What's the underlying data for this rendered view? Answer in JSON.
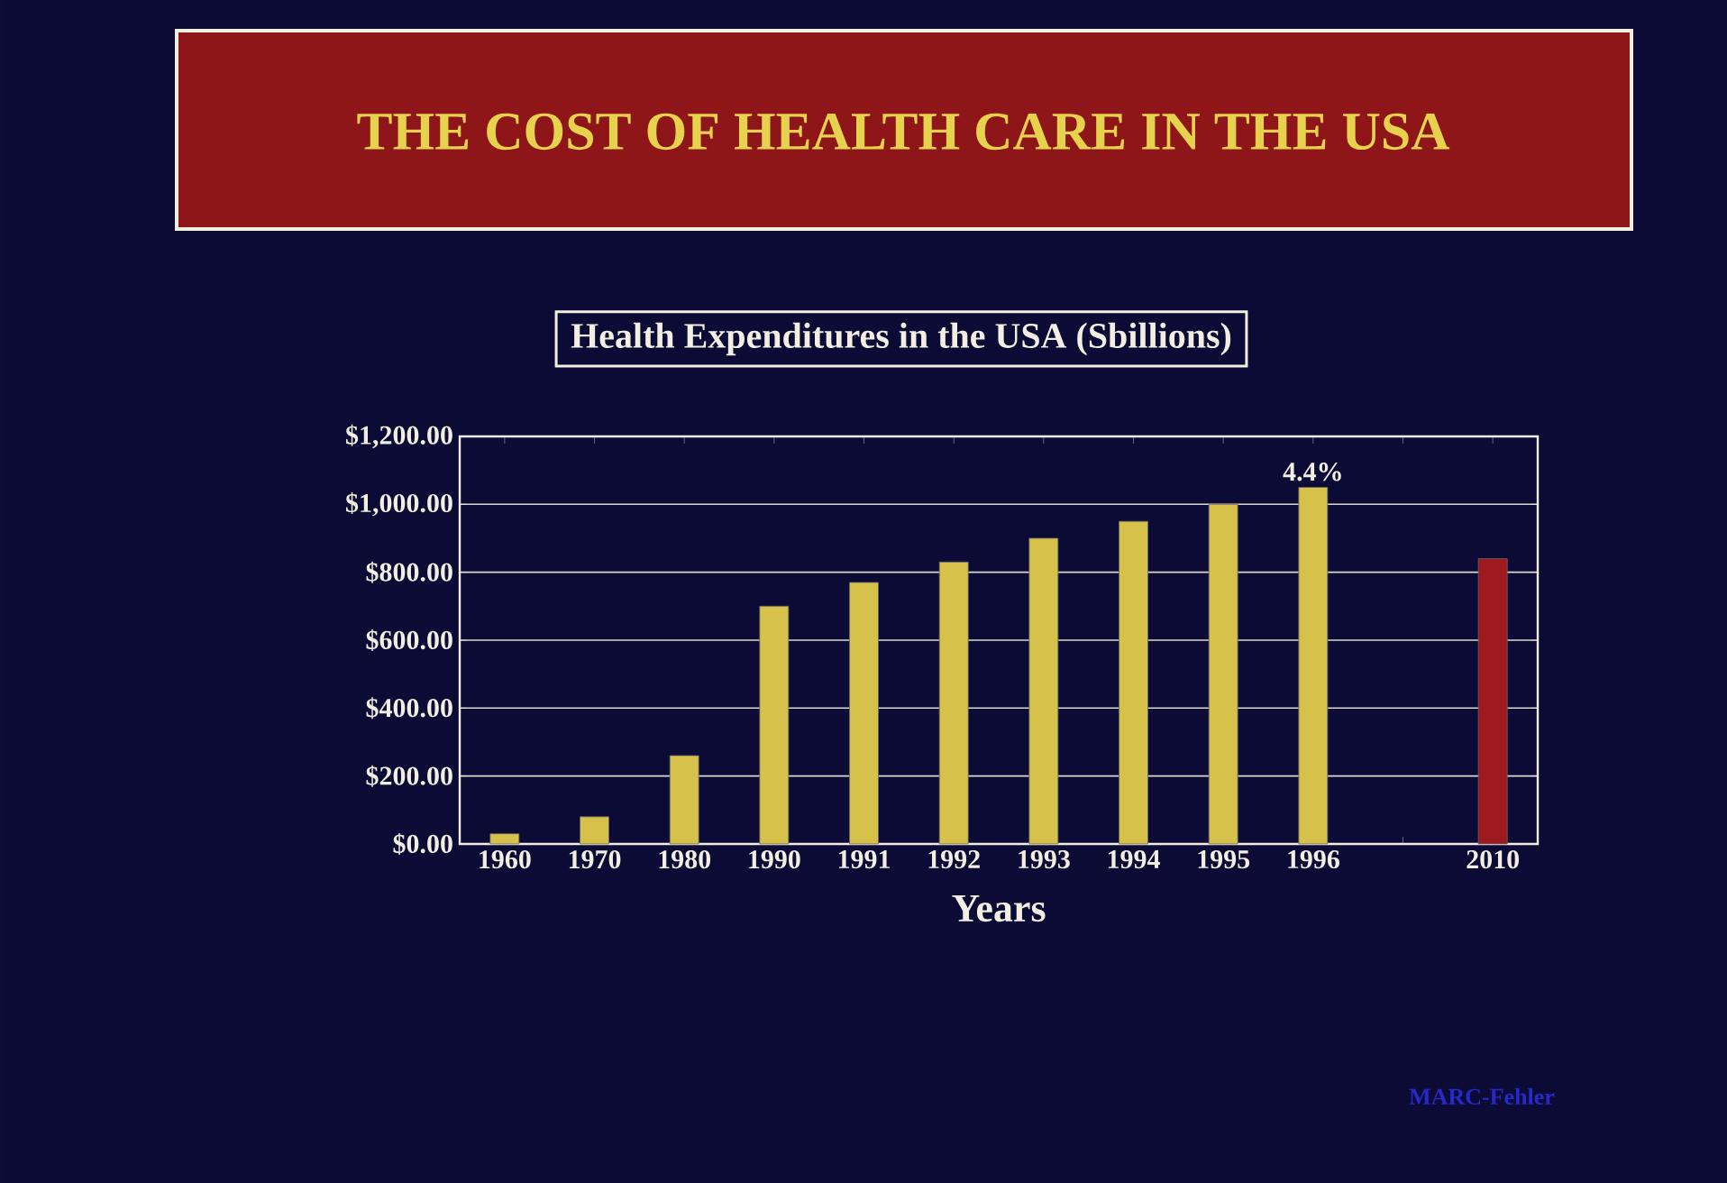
{
  "chart_data": {
    "type": "bar",
    "title": "THE COST OF HEALTH CARE IN THE USA",
    "subtitle": "Health Expenditures in the USA (Sbillions)",
    "xlabel": "Years",
    "categories": [
      "1960",
      "1970",
      "1980",
      "1990",
      "1991",
      "1992",
      "1993",
      "1994",
      "1995",
      "1996",
      null,
      "2010"
    ],
    "values": [
      30,
      80,
      260,
      700,
      770,
      830,
      900,
      950,
      1000,
      1050,
      null,
      840
    ],
    "colors": [
      "#d6c24a",
      "#d6c24a",
      "#d6c24a",
      "#d6c24a",
      "#d6c24a",
      "#d6c24a",
      "#d6c24a",
      "#d6c24a",
      "#d6c24a",
      "#d6c24a",
      "#d6c24a",
      "#9e1a1e"
    ],
    "ylim": [
      0,
      1200
    ],
    "yticks": [
      {
        "value": 0,
        "label": "$0.00"
      },
      {
        "value": 200,
        "label": "$200.00"
      },
      {
        "value": 400,
        "label": "$400.00"
      },
      {
        "value": 600,
        "label": "$600.00"
      },
      {
        "value": 800,
        "label": "$800.00"
      },
      {
        "value": 1000,
        "label": "$1,000.00"
      },
      {
        "value": 1200,
        "label": "$1,200.00"
      }
    ],
    "grid": "y",
    "annotations": [
      {
        "text": "4.4%",
        "x": "1996",
        "y": 1050
      },
      "MARC-Fehler"
    ]
  }
}
